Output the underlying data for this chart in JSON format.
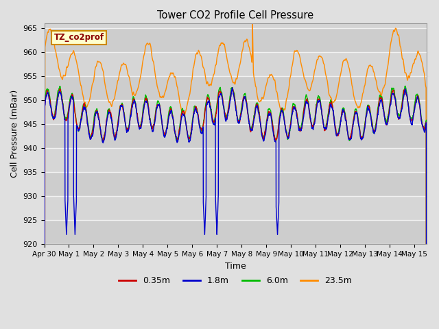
{
  "title": "Tower CO2 Profile Cell Pressure",
  "xlabel": "Time",
  "ylabel": "Cell Pressure (mBar)",
  "ylim": [
    920,
    966
  ],
  "yticks": [
    920,
    925,
    930,
    935,
    940,
    945,
    950,
    955,
    960,
    965
  ],
  "fig_bg": "#e0e0e0",
  "plot_bg": "#d4d4d4",
  "grid_color": "#f0f0f0",
  "legend_colors": [
    "#cc0000",
    "#0000cc",
    "#00cc00",
    "#ff8c00"
  ],
  "legend_labels": [
    "0.35m",
    "1.8m",
    "6.0m",
    "23.5m"
  ],
  "annotation_text": "TZ_co2prof",
  "annotation_bg": "#ffffcc",
  "annotation_border": "#cc8800",
  "xlim": [
    0,
    15.5
  ],
  "xtick_positions": [
    0,
    1,
    2,
    3,
    4,
    5,
    6,
    7,
    8,
    9,
    10,
    11,
    12,
    13,
    14,
    15
  ],
  "xtick_labels": [
    "Apr 30",
    "May 1",
    "May 2",
    "May 3",
    "May 4",
    "May 5",
    "May 6",
    "May 7",
    "May 8",
    "May 9",
    "May 10",
    "May 11",
    "May 12",
    "May 13",
    "May 14",
    "May 15"
  ]
}
